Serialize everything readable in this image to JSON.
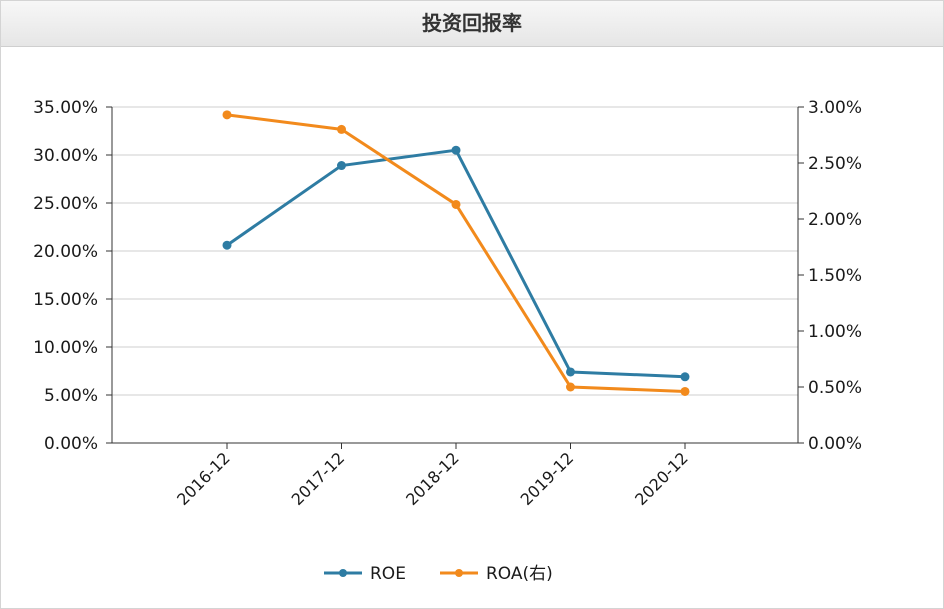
{
  "title": "投资回报率",
  "colors": {
    "roe": "#2e7ca3",
    "roa": "#f28a1c",
    "grid": "#cfcfcf",
    "axis": "#333333"
  },
  "chart_data": {
    "type": "line",
    "title": "投资回报率",
    "categories": [
      "2016-12",
      "2017-12",
      "2018-12",
      "2019-12",
      "2020-12"
    ],
    "y_left": {
      "ylim": [
        0,
        35
      ],
      "ticks": [
        0,
        5,
        10,
        15,
        20,
        25,
        30,
        35
      ],
      "tick_labels": [
        "0.00%",
        "5.00%",
        "10.00%",
        "15.00%",
        "20.00%",
        "25.00%",
        "30.00%",
        "35.00%"
      ]
    },
    "y_right": {
      "ylim": [
        0,
        3
      ],
      "ticks": [
        0,
        0.5,
        1,
        1.5,
        2,
        2.5,
        3
      ],
      "tick_labels": [
        "0.00%",
        "0.50%",
        "1.00%",
        "1.50%",
        "2.00%",
        "2.50%",
        "3.00%"
      ]
    },
    "series": [
      {
        "name": "ROE",
        "axis": "left",
        "color": "#2e7ca3",
        "values": [
          20.6,
          28.9,
          30.5,
          7.4,
          6.9
        ]
      },
      {
        "name": "ROA(右)",
        "axis": "right",
        "color": "#f28a1c",
        "values": [
          2.93,
          2.8,
          2.13,
          0.5,
          0.46
        ]
      }
    ],
    "grid": true,
    "legend": "bottom"
  }
}
